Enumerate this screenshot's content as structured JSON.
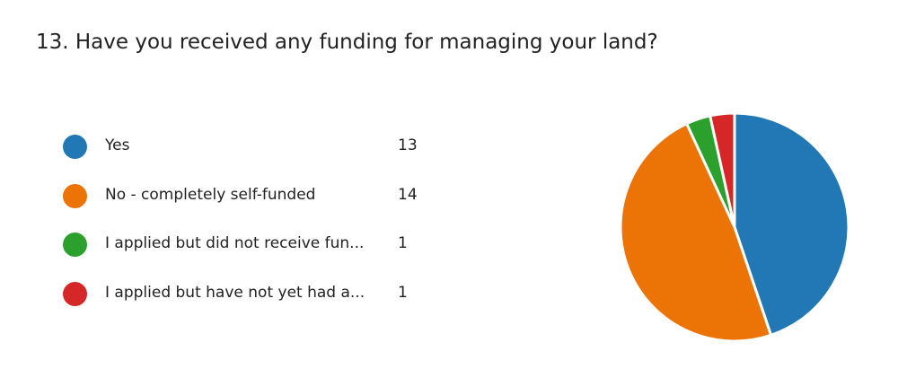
{
  "question": {
    "title": "13.  Have you received any funding for managing your land?"
  },
  "chart_data": {
    "type": "pie",
    "categories": [
      "Yes",
      "No - completely self-funded",
      "I applied but did not receive fun...",
      "I applied but have not yet had a..."
    ],
    "values": [
      13,
      14,
      1,
      1
    ],
    "colors": [
      "#2178b5",
      "#ec7306",
      "#2ca02c",
      "#d62728"
    ],
    "legend": "left",
    "start": "top",
    "direction": "clockwise"
  }
}
